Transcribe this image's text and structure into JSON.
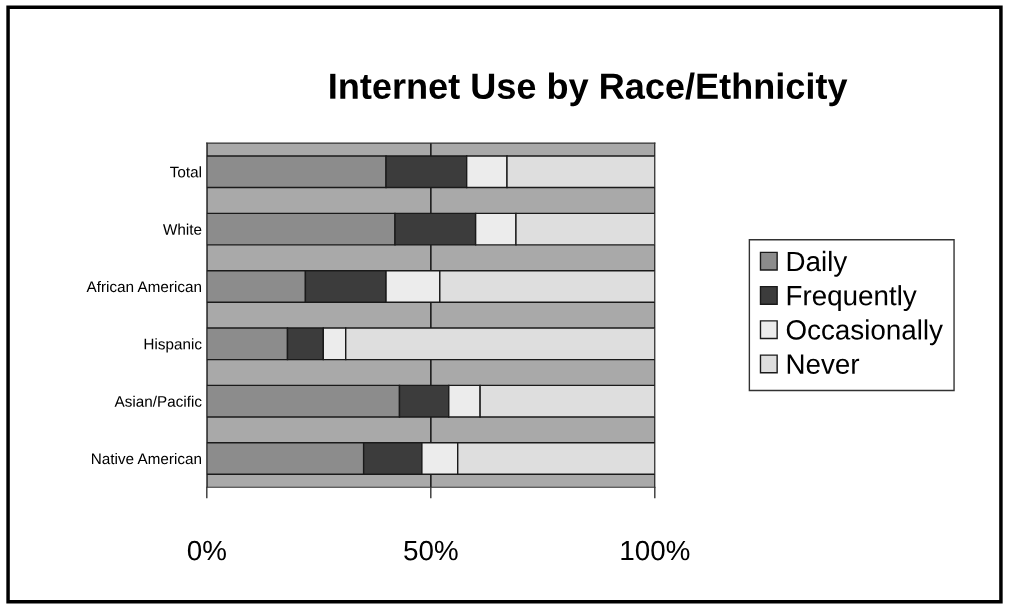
{
  "chart_data": {
    "type": "bar",
    "orientation": "horizontal",
    "stacked": true,
    "title": "Internet Use by Race/Ethnicity",
    "categories": [
      "Total",
      "White",
      "African American",
      "Hispanic",
      "Asian/Pacific",
      "Native American"
    ],
    "series": [
      {
        "name": "Daily",
        "color": "#8c8c8c",
        "values": [
          40,
          42,
          22,
          18,
          43,
          35
        ]
      },
      {
        "name": "Frequently",
        "color": "#3c3c3c",
        "values": [
          18,
          18,
          18,
          8,
          11,
          13
        ]
      },
      {
        "name": "Occasionally",
        "color": "#ececec",
        "values": [
          9,
          9,
          12,
          5,
          7,
          8
        ]
      },
      {
        "name": "Never",
        "color": "#dedede",
        "values": [
          33,
          31,
          48,
          69,
          39,
          44
        ]
      }
    ],
    "xlim": [
      0,
      100
    ],
    "xticks": [
      {
        "value": 0,
        "label": "0%"
      },
      {
        "value": 50,
        "label": "50%"
      },
      {
        "value": 100,
        "label": "100%"
      }
    ],
    "grid": "x",
    "legend": "right"
  }
}
